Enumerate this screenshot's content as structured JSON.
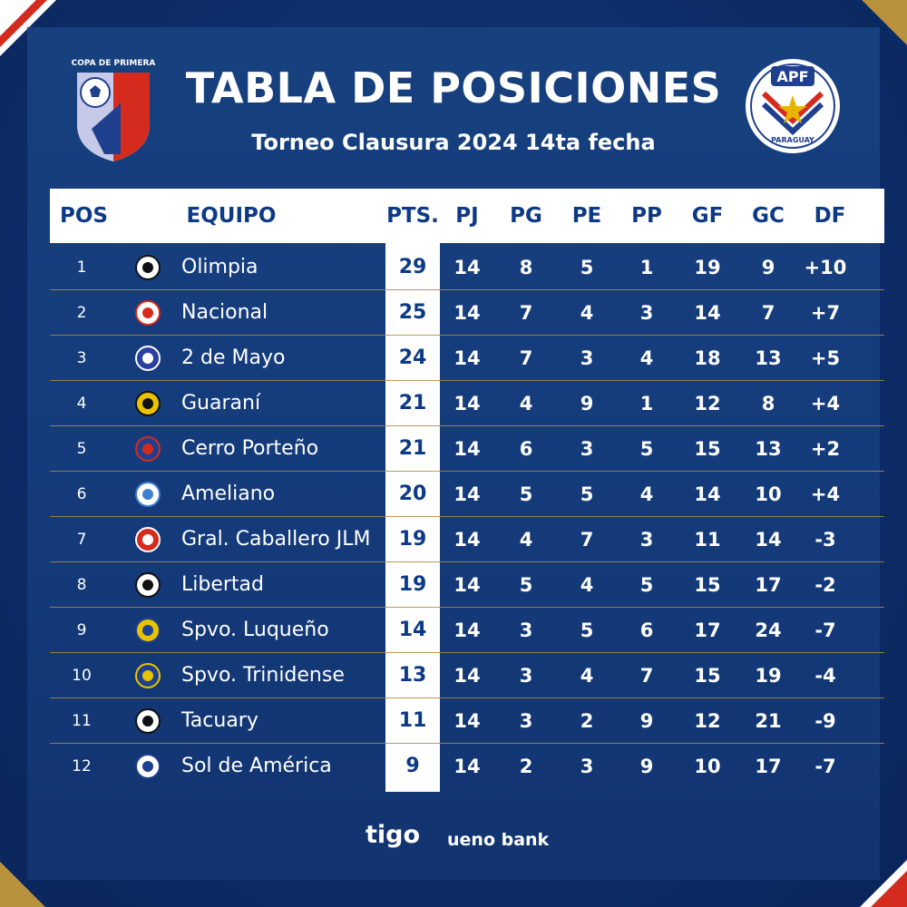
{
  "header": {
    "title": "TABLA DE POSICIONES",
    "subtitle": "Torneo Clausura 2024 14ta fecha",
    "left_logo_text": "COPA DE PRIMERA",
    "right_logo_text": "APF",
    "right_logo_sub": "PARAGUAY"
  },
  "columns": {
    "pos": "POS",
    "team": "EQUIPO",
    "pts": "PTS.",
    "pj": "PJ",
    "pg": "PG",
    "pe": "PE",
    "pp": "PP",
    "gf": "GF",
    "gc": "GC",
    "df": "DF"
  },
  "rows": [
    {
      "pos": "1",
      "team": "Olimpia",
      "pts": "29",
      "pj": "14",
      "pg": "8",
      "pe": "5",
      "pp": "1",
      "gf": "19",
      "gc": "9",
      "df": "+10",
      "crest": "olimpia-crest"
    },
    {
      "pos": "2",
      "team": "Nacional",
      "pts": "25",
      "pj": "14",
      "pg": "7",
      "pe": "4",
      "pp": "3",
      "gf": "14",
      "gc": "7",
      "df": "+7",
      "crest": "nacional-crest"
    },
    {
      "pos": "3",
      "team": "2 de Mayo",
      "pts": "24",
      "pj": "14",
      "pg": "7",
      "pe": "3",
      "pp": "4",
      "gf": "18",
      "gc": "13",
      "df": "+5",
      "crest": "2-de-mayo-crest"
    },
    {
      "pos": "4",
      "team": "Guaraní",
      "pts": "21",
      "pj": "14",
      "pg": "4",
      "pe": "9",
      "pp": "1",
      "gf": "12",
      "gc": "8",
      "df": "+4",
      "crest": "guarani-crest"
    },
    {
      "pos": "5",
      "team": "Cerro Porteño",
      "pts": "21",
      "pj": "14",
      "pg": "6",
      "pe": "3",
      "pp": "5",
      "gf": "15",
      "gc": "13",
      "df": "+2",
      "crest": "cerro-porteno-crest"
    },
    {
      "pos": "6",
      "team": "Ameliano",
      "pts": "20",
      "pj": "14",
      "pg": "5",
      "pe": "5",
      "pp": "4",
      "gf": "14",
      "gc": "10",
      "df": "+4",
      "crest": "ameliano-crest"
    },
    {
      "pos": "7",
      "team": "Gral. Caballero JLM",
      "pts": "19",
      "pj": "14",
      "pg": "4",
      "pe": "7",
      "pp": "3",
      "gf": "11",
      "gc": "14",
      "df": "-3",
      "crest": "gral-caballero-crest"
    },
    {
      "pos": "8",
      "team": "Libertad",
      "pts": "19",
      "pj": "14",
      "pg": "5",
      "pe": "4",
      "pp": "5",
      "gf": "15",
      "gc": "17",
      "df": "-2",
      "crest": "libertad-crest"
    },
    {
      "pos": "9",
      "team": "Spvo. Luqueño",
      "pts": "14",
      "pj": "14",
      "pg": "3",
      "pe": "5",
      "pp": "6",
      "gf": "17",
      "gc": "24",
      "df": "-7",
      "crest": "luqueno-crest"
    },
    {
      "pos": "10",
      "team": "Spvo. Trinidense",
      "pts": "13",
      "pj": "14",
      "pg": "3",
      "pe": "4",
      "pp": "7",
      "gf": "15",
      "gc": "19",
      "df": "-4",
      "crest": "trinidense-crest"
    },
    {
      "pos": "11",
      "team": "Tacuary",
      "pts": "11",
      "pj": "14",
      "pg": "3",
      "pe": "2",
      "pp": "9",
      "gf": "12",
      "gc": "21",
      "df": "-9",
      "crest": "tacuary-crest"
    },
    {
      "pos": "12",
      "team": "Sol de América",
      "pts": "9",
      "pj": "14",
      "pg": "2",
      "pe": "3",
      "pp": "9",
      "gf": "10",
      "gc": "17",
      "df": "-7",
      "crest": "sol-de-america-crest"
    }
  ],
  "sponsors": {
    "tigo": "tigo",
    "ueno": "ueno bank"
  },
  "colors": {
    "navy": "#0d3a86",
    "gold": "#a88c3e",
    "red": "#d52b1e"
  }
}
